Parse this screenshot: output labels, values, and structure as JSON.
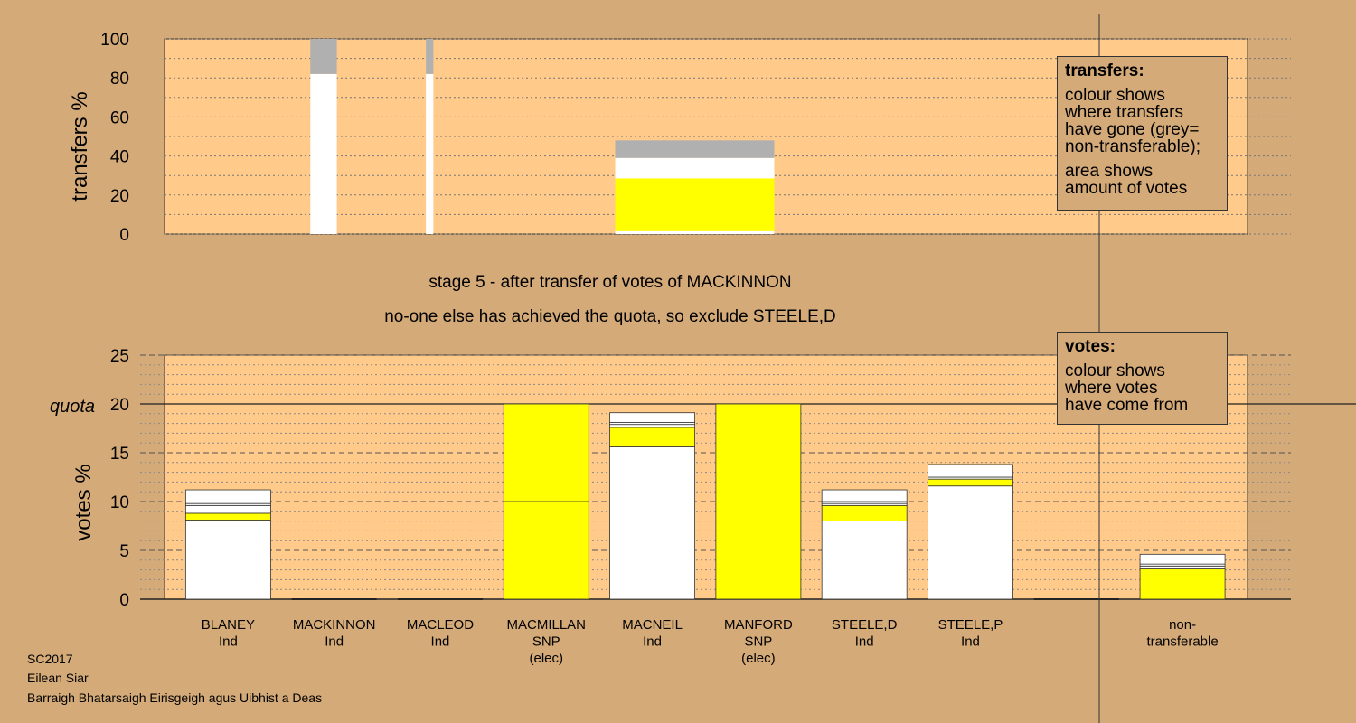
{
  "header": {
    "stage_line": "stage 5 - after transfer of votes of MACKINNON",
    "status_line": "no-one else has achieved the quota, so exclude STEELE,D"
  },
  "legend_transfers": {
    "title": "transfers:",
    "lines1": [
      "colour shows",
      "where transfers",
      "have gone (grey=",
      "non-transferable);"
    ],
    "lines2": [
      "area shows",
      "amount of votes"
    ]
  },
  "legend_votes": {
    "title": "votes:",
    "lines": [
      "colour shows",
      "where votes",
      "have come from"
    ]
  },
  "footer": {
    "line1": "SC2017",
    "line2": "Eilean Siar",
    "line3": "Barraigh Bhatarsaigh Eirisgeigh agus Uibhist a Deas"
  },
  "colors": {
    "background": "#d4aa78",
    "plot_area": "#ffca8a",
    "white": "#ffffff",
    "snp_yellow": "#ffff00",
    "nontransferable_grey": "#b0b0b0"
  },
  "chart_data": [
    {
      "type": "bar",
      "stacked": true,
      "ylabel": "transfers %",
      "ylim": [
        0,
        100
      ],
      "yticks": [
        0,
        20,
        40,
        60,
        80,
        100
      ],
      "grid": true,
      "bars": [
        {
          "x_center": 1.5,
          "width": 0.25,
          "segments": [
            {
              "from": 0,
              "to": 82,
              "color": "white"
            },
            {
              "from": 82,
              "to": 100,
              "color": "grey"
            }
          ]
        },
        {
          "x_center": 2.5,
          "width": 0.07,
          "segments": [
            {
              "from": 0,
              "to": 82,
              "color": "white"
            },
            {
              "from": 82,
              "to": 100,
              "color": "grey"
            }
          ]
        },
        {
          "x_center": 5.0,
          "width": 1.5,
          "segments": [
            {
              "from": 0,
              "to": 1.5,
              "color": "white"
            },
            {
              "from": 1.5,
              "to": 28.5,
              "color": "yellow"
            },
            {
              "from": 28.5,
              "to": 39,
              "color": "white"
            },
            {
              "from": 39,
              "to": 48,
              "color": "grey"
            }
          ]
        }
      ]
    },
    {
      "type": "bar",
      "stacked": true,
      "ylabel": "votes %",
      "ylim": [
        0,
        25
      ],
      "yticks": [
        0,
        5,
        10,
        15,
        20,
        25
      ],
      "quota": 20,
      "quota_label": "quota",
      "grid": true,
      "categories": [
        {
          "name": "BLANEY",
          "party": "Ind",
          "note": ""
        },
        {
          "name": "MACKINNON",
          "party": "Ind",
          "note": ""
        },
        {
          "name": "MACLEOD",
          "party": "Ind",
          "note": ""
        },
        {
          "name": "MACMILLAN",
          "party": "SNP",
          "note": "(elec)"
        },
        {
          "name": "MACNEIL",
          "party": "Ind",
          "note": ""
        },
        {
          "name": "MANFORD",
          "party": "SNP",
          "note": "(elec)"
        },
        {
          "name": "STEELE,D",
          "party": "Ind",
          "note": ""
        },
        {
          "name": "STEELE,P",
          "party": "Ind",
          "note": ""
        },
        {
          "name": "",
          "party": "",
          "note": ""
        },
        {
          "name": "non-",
          "party": "transferable",
          "note": ""
        }
      ],
      "stacks": [
        [
          {
            "from": 0,
            "to": 8.1,
            "color": "white"
          },
          {
            "from": 8.1,
            "to": 8.8,
            "color": "yellow"
          },
          {
            "from": 8.8,
            "to": 9.6,
            "color": "white"
          },
          {
            "from": 9.6,
            "to": 9.8,
            "color": "white"
          },
          {
            "from": 9.8,
            "to": 11.2,
            "color": "white"
          }
        ],
        [],
        [],
        [
          {
            "from": 0,
            "to": 10,
            "color": "yellow"
          },
          {
            "from": 10,
            "to": 20,
            "color": "yellow"
          }
        ],
        [
          {
            "from": 0,
            "to": 15.6,
            "color": "white"
          },
          {
            "from": 15.6,
            "to": 17.6,
            "color": "yellow"
          },
          {
            "from": 17.6,
            "to": 17.9,
            "color": "white"
          },
          {
            "from": 17.9,
            "to": 18.1,
            "color": "white"
          },
          {
            "from": 18.1,
            "to": 19.1,
            "color": "white"
          }
        ],
        [
          {
            "from": 0,
            "to": 20,
            "color": "yellow"
          }
        ],
        [
          {
            "from": 0,
            "to": 8.0,
            "color": "white"
          },
          {
            "from": 8.0,
            "to": 9.6,
            "color": "yellow"
          },
          {
            "from": 9.6,
            "to": 9.8,
            "color": "white"
          },
          {
            "from": 9.8,
            "to": 10.0,
            "color": "white"
          },
          {
            "from": 10.0,
            "to": 11.2,
            "color": "white"
          }
        ],
        [
          {
            "from": 0,
            "to": 11.6,
            "color": "white"
          },
          {
            "from": 11.6,
            "to": 12.3,
            "color": "yellow"
          },
          {
            "from": 12.3,
            "to": 12.5,
            "color": "white"
          },
          {
            "from": 12.5,
            "to": 13.8,
            "color": "white"
          }
        ],
        [],
        [
          {
            "from": 0,
            "to": 3.1,
            "color": "yellow"
          },
          {
            "from": 3.1,
            "to": 3.4,
            "color": "white"
          },
          {
            "from": 3.4,
            "to": 3.6,
            "color": "white"
          },
          {
            "from": 3.6,
            "to": 4.6,
            "color": "white"
          }
        ]
      ]
    }
  ]
}
